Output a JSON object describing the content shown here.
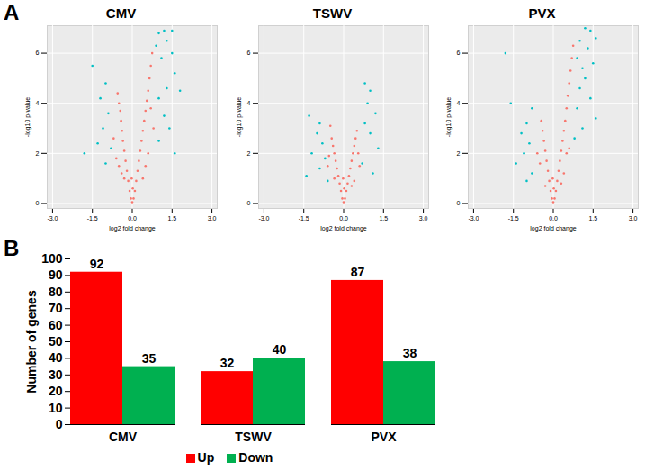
{
  "chart_data": [
    {
      "type": "scatter",
      "title": "CMV",
      "annotations": [
        "A"
      ],
      "x_label": "log2 fold change",
      "y_label": "-log10 p-value",
      "xlim": [
        -3.2,
        3.2
      ],
      "xticks": [
        {
          "value": -3,
          "label": "-3.0"
        },
        {
          "value": -1.5,
          "label": "-1.5"
        },
        {
          "value": 0,
          "label": "0.0"
        },
        {
          "value": 1.5,
          "label": "1.5"
        },
        {
          "value": 3,
          "label": "3.0"
        }
      ],
      "ylim": [
        -0.2,
        7.1
      ],
      "yticks": [
        0,
        2,
        4,
        6
      ],
      "grid": true,
      "series": [
        {
          "color": "#f8766d",
          "marker": "circle",
          "x": [
            0,
            0.05,
            -0.05,
            0.1,
            -0.1,
            0.15,
            -0.15,
            0.2,
            -0.2,
            0.25,
            -0.25,
            0.3,
            -0.3,
            0.35,
            -0.35,
            0.4,
            -0.38,
            0.45,
            -0.42,
            0.5,
            -0.45,
            0.55,
            -0.5,
            0.6,
            -0.55,
            0.65,
            0.7,
            0.75,
            0.4,
            -0.4,
            0.6,
            -0.6,
            0.8,
            -0.7,
            0.02,
            -0.02,
            0.5,
            -0.5,
            0.7,
            -0.3
          ],
          "values": [
            0.05,
            0.2,
            0.2,
            0.5,
            0.5,
            0.9,
            0.9,
            1.3,
            1.3,
            1.7,
            1.7,
            2.1,
            2.1,
            2.5,
            2.5,
            2.9,
            2.9,
            3.3,
            3.3,
            3.7,
            3.7,
            4.1,
            4.0,
            4.5,
            4.4,
            5.0,
            5.5,
            6.0,
            1.0,
            1.2,
            2.0,
            1.8,
            3.0,
            2.6,
            0.6,
            1.0,
            1.5,
            1.5,
            3.8,
            1.0
          ]
        },
        {
          "color": "#00bfc4",
          "marker": "circle",
          "x": [
            1.0,
            1.2,
            1.5,
            1.3,
            0.9,
            1.1,
            1.5,
            1.6,
            1.3,
            1.0,
            1.8,
            1.2,
            1.4,
            1.0,
            1.6,
            -1.0,
            -1.2,
            -0.9,
            -1.1,
            -1.3,
            -0.8,
            -1.8,
            -1.0,
            -1.5
          ],
          "values": [
            6.8,
            6.9,
            6.9,
            6.5,
            6.3,
            5.8,
            6.0,
            5.2,
            4.6,
            4.2,
            4.5,
            3.5,
            3.0,
            2.5,
            2.0,
            4.8,
            4.2,
            3.6,
            3.0,
            2.4,
            2.2,
            2.0,
            1.6,
            5.5
          ]
        }
      ]
    },
    {
      "type": "scatter",
      "title": "TSWV",
      "x_label": "log2 fold change",
      "y_label": "-log10 p-value",
      "xlim": [
        -3.2,
        3.2
      ],
      "xticks": [
        {
          "value": -3,
          "label": "-3.0"
        },
        {
          "value": -1.5,
          "label": "-1.5"
        },
        {
          "value": 0,
          "label": "0.0"
        },
        {
          "value": 1.5,
          "label": "1.5"
        },
        {
          "value": 3,
          "label": "3.0"
        }
      ],
      "ylim": [
        -0.2,
        7.1
      ],
      "yticks": [
        0,
        2,
        4,
        6
      ],
      "grid": true,
      "series": [
        {
          "color": "#f8766d",
          "marker": "circle",
          "x": [
            0,
            0.05,
            -0.05,
            0.1,
            -0.1,
            0.15,
            -0.15,
            0.2,
            -0.2,
            0.25,
            -0.25,
            0.3,
            -0.3,
            0.35,
            -0.35,
            0.4,
            -0.4,
            0.45,
            -0.45,
            0.5,
            0.3,
            -0.5,
            0.6,
            -0.6,
            0.02,
            -0.02,
            0.4,
            -0.35,
            0.55,
            -0.55
          ],
          "values": [
            0.05,
            0.2,
            0.2,
            0.5,
            0.5,
            0.8,
            0.8,
            1.1,
            1.1,
            1.4,
            1.4,
            1.7,
            1.7,
            2.0,
            2.0,
            2.3,
            2.3,
            2.6,
            2.6,
            2.9,
            0.7,
            3.1,
            1.5,
            1.5,
            0.6,
            1.0,
            0.9,
            1.0,
            2.0,
            1.9
          ]
        },
        {
          "color": "#00bfc4",
          "marker": "circle",
          "x": [
            -1.3,
            -0.9,
            -1.0,
            -0.8,
            -1.2,
            -0.7,
            -0.9,
            -1.4,
            0.8,
            1.0,
            0.9,
            1.2,
            0.8,
            1.0,
            1.3,
            0.7,
            1.1,
            -0.6
          ],
          "values": [
            3.5,
            3.2,
            2.8,
            2.4,
            2.0,
            1.8,
            1.4,
            1.1,
            4.8,
            4.5,
            4.0,
            3.6,
            3.2,
            2.8,
            2.2,
            1.6,
            1.2,
            0.9
          ]
        }
      ]
    },
    {
      "type": "scatter",
      "title": "PVX",
      "x_label": "log2 fold change",
      "y_label": "-log10 p-value",
      "xlim": [
        -3.2,
        3.2
      ],
      "xticks": [
        {
          "value": -3,
          "label": "-3.0"
        },
        {
          "value": -1.5,
          "label": "-1.5"
        },
        {
          "value": 0,
          "label": "0.0"
        },
        {
          "value": 1.5,
          "label": "1.5"
        },
        {
          "value": 3,
          "label": "3.0"
        }
      ],
      "ylim": [
        -0.2,
        7.1
      ],
      "yticks": [
        0,
        2,
        4,
        6
      ],
      "grid": true,
      "series": [
        {
          "color": "#f8766d",
          "marker": "circle",
          "x": [
            0,
            0.05,
            -0.05,
            0.1,
            -0.1,
            0.15,
            -0.15,
            0.2,
            -0.2,
            0.25,
            -0.25,
            0.3,
            -0.3,
            0.35,
            -0.35,
            0.4,
            -0.4,
            0.45,
            -0.45,
            0.5,
            0.55,
            0.6,
            0.65,
            0.7,
            0.4,
            -0.5,
            0.6,
            -0.6,
            0.02,
            -0.02,
            0.3,
            -0.3,
            0.75,
            0.5
          ],
          "values": [
            0.05,
            0.2,
            0.2,
            0.5,
            0.5,
            0.9,
            0.9,
            1.3,
            1.3,
            1.7,
            1.7,
            2.1,
            2.1,
            2.5,
            2.5,
            2.9,
            2.9,
            3.3,
            3.3,
            3.8,
            4.3,
            4.8,
            5.3,
            5.8,
            1.2,
            1.6,
            2.2,
            2.0,
            0.6,
            1.0,
            0.8,
            0.7,
            6.3,
            2.0
          ]
        },
        {
          "color": "#00bfc4",
          "marker": "circle",
          "x": [
            1.2,
            1.4,
            1.0,
            1.3,
            1.6,
            0.9,
            1.1,
            1.5,
            1.2,
            1.0,
            1.4,
            0.9,
            1.6,
            1.1,
            0.8,
            -0.8,
            -1.0,
            -1.2,
            -0.9,
            -1.1,
            -1.4,
            -0.8,
            -1.8,
            -1.6,
            -1.0
          ],
          "values": [
            7.0,
            6.9,
            6.5,
            6.2,
            6.6,
            5.8,
            5.4,
            5.6,
            5.0,
            4.6,
            4.2,
            3.8,
            3.4,
            3.0,
            2.6,
            3.8,
            3.2,
            2.8,
            2.4,
            2.0,
            1.6,
            1.2,
            6.0,
            4.0,
            0.9
          ]
        }
      ]
    },
    {
      "type": "bar",
      "annotations": [
        "B"
      ],
      "y_label": "Number of genes",
      "categories": [
        "CMV",
        "TSWV",
        "PVX"
      ],
      "series": [
        {
          "name": "Up",
          "color": "#ff0000",
          "values": [
            92,
            32,
            87
          ]
        },
        {
          "name": "Down",
          "color": "#00b050",
          "values": [
            35,
            40,
            38
          ]
        }
      ],
      "ylim": [
        0,
        100
      ],
      "yticks": [
        0,
        10,
        20,
        30,
        40,
        50,
        60,
        70,
        80,
        90,
        100
      ],
      "grid": false,
      "data_labels": true,
      "legend": "bottom"
    }
  ]
}
